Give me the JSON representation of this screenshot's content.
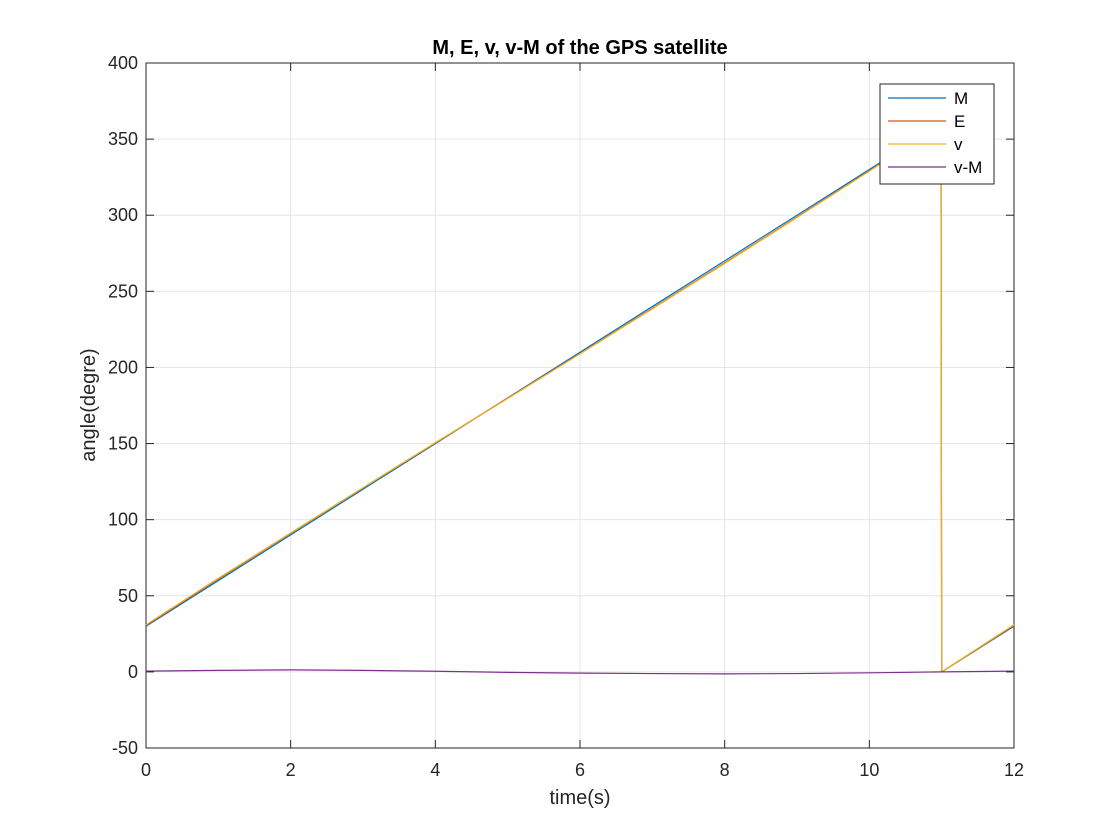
{
  "chart_data": {
    "type": "line",
    "title": "M, E, v, v-M of the GPS satellite",
    "xlabel": "time(s)",
    "ylabel": "angle(degre)",
    "xlim": [
      0,
      12
    ],
    "ylim": [
      -50,
      400
    ],
    "xticks": [
      0,
      2,
      4,
      6,
      8,
      10,
      12
    ],
    "yticks": [
      -50,
      0,
      50,
      100,
      150,
      200,
      250,
      300,
      350,
      400
    ],
    "xtick_labels": [
      "0",
      "2",
      "4",
      "6",
      "8",
      "10",
      "12"
    ],
    "ytick_labels": [
      "-50",
      "0",
      "50",
      "100",
      "150",
      "200",
      "250",
      "300",
      "350",
      "400"
    ],
    "grid": true,
    "legend_position": "top-right",
    "series": [
      {
        "name": "M",
        "color": "#0072BD",
        "x": [
          0,
          1,
          2,
          3,
          4,
          5,
          6,
          7,
          8,
          9,
          10,
          10.99,
          11,
          12
        ],
        "y": [
          30,
          60,
          90,
          120,
          150,
          180,
          210,
          240,
          270,
          300,
          330,
          359.7,
          0,
          30
        ]
      },
      {
        "name": "E",
        "color": "#D95319",
        "x": [
          0,
          1,
          2,
          3,
          4,
          5,
          6,
          7,
          8,
          9,
          10,
          10.99,
          11,
          12
        ],
        "y": [
          30.6,
          61.0,
          91.0,
          120.9,
          150.4,
          179.8,
          209.1,
          238.8,
          268.7,
          298.8,
          329.1,
          359.6,
          0,
          30.6
        ]
      },
      {
        "name": "v",
        "color": "#EDB120",
        "x": [
          0,
          1,
          2,
          3,
          4,
          5,
          6,
          7,
          8,
          9,
          10,
          10.99,
          11,
          12
        ],
        "y": [
          31.0,
          61.5,
          91.3,
          121.0,
          150.6,
          179.6,
          208.9,
          238.5,
          268.3,
          298.5,
          329.0,
          359.5,
          0,
          31.0
        ]
      },
      {
        "name": "v-M",
        "color": "#7E2F8E",
        "x": [
          0,
          1,
          2,
          3,
          4,
          5,
          6,
          7,
          8,
          9,
          10,
          11,
          12
        ],
        "y": [
          0.5,
          1.0,
          1.3,
          1.0,
          0.4,
          -0.3,
          -0.8,
          -1.1,
          -1.3,
          -1.1,
          -0.6,
          0,
          0.5
        ]
      }
    ]
  }
}
